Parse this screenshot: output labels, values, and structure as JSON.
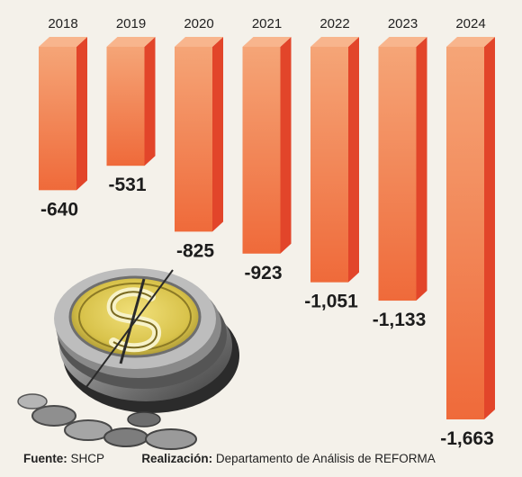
{
  "chart_data": {
    "type": "bar",
    "categories": [
      "2018",
      "2019",
      "2020",
      "2021",
      "2022",
      "2023",
      "2024"
    ],
    "values": [
      -640,
      -531,
      -825,
      -923,
      -1051,
      -1133,
      -1663
    ],
    "value_labels": [
      "-640",
      "-531",
      "-825",
      "-923",
      "-1,051",
      "-1,133",
      "-1,663"
    ],
    "ylim": [
      -1663,
      0
    ],
    "colors": {
      "front_top": "#f5a577",
      "front_bottom": "#ef6a3a",
      "side": "#e2452a",
      "top": "#f8b58d"
    }
  },
  "footer": {
    "source_label": "Fuente:",
    "source_value": "SHCP",
    "credit_label": "Realización:",
    "credit_value": "Departamento de Análisis de REFORMA"
  },
  "illustration": {
    "icon": "coin-stack-dollar-icon"
  }
}
